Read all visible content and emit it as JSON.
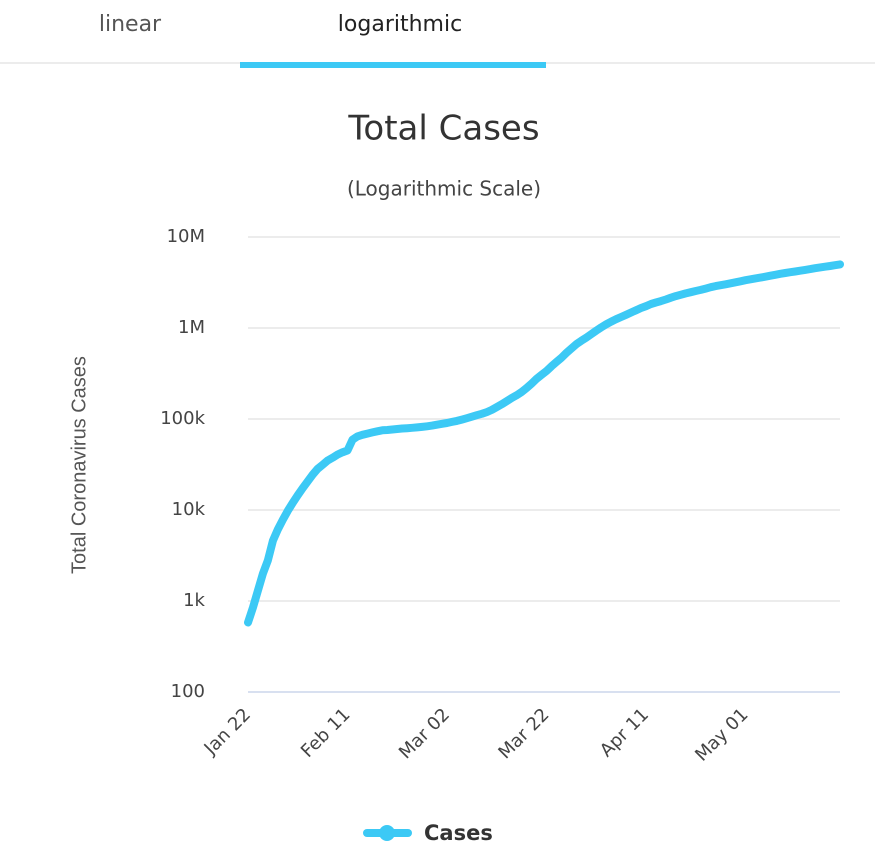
{
  "tabs": [
    "linear",
    "logarithmic"
  ],
  "chart_data": {
    "type": "line",
    "title": "Total Cases",
    "subtitle": "(Logarithmic Scale)",
    "y_label": "Total Coronavirus Cases",
    "log_scale": true,
    "grid": true,
    "legend": "bottom",
    "categories": [
      "Jan 22",
      null,
      null,
      null,
      null,
      null,
      null,
      null,
      null,
      null,
      null,
      null,
      null,
      null,
      null,
      null,
      null,
      null,
      null,
      null,
      "Feb 11",
      null,
      null,
      null,
      null,
      null,
      null,
      null,
      null,
      null,
      null,
      null,
      null,
      null,
      null,
      null,
      null,
      null,
      null,
      null,
      "Mar 02",
      null,
      null,
      null,
      null,
      null,
      null,
      null,
      null,
      null,
      null,
      null,
      null,
      null,
      null,
      null,
      null,
      null,
      null,
      null,
      "Mar 22",
      null,
      null,
      null,
      null,
      null,
      null,
      null,
      null,
      null,
      null,
      null,
      null,
      null,
      null,
      null,
      null,
      null,
      null,
      null,
      "Apr 11",
      null,
      null,
      null,
      null,
      null,
      null,
      null,
      null,
      null,
      null,
      null,
      null,
      null,
      null,
      null,
      null,
      null,
      null,
      null,
      "May 01",
      null,
      null,
      null,
      null,
      null,
      null,
      null,
      null,
      null,
      null,
      null,
      null,
      null,
      null,
      null,
      null,
      null,
      null,
      null
    ],
    "series": [
      {
        "name": "Cases",
        "color": "#3cc9f5",
        "values": [
          580,
          850,
          1300,
          2000,
          2800,
          4600,
          6100,
          7800,
          9800,
          12000,
          14500,
          17400,
          20600,
          24500,
          28300,
          31400,
          34900,
          37600,
          40600,
          43100,
          45100,
          59300,
          64400,
          67100,
          69200,
          71300,
          73300,
          75200,
          75700,
          76700,
          77700,
          78700,
          79200,
          80100,
          80800,
          81800,
          83100,
          84600,
          86600,
          88600,
          90400,
          93000,
          95300,
          98400,
          102000,
          106000,
          110000,
          114000,
          119000,
          126000,
          135000,
          145000,
          157000,
          170000,
          182000,
          198000,
          219000,
          245000,
          276000,
          305000,
          337000,
          379000,
          423000,
          471000,
          532000,
          596000,
          663000,
          723000,
          785000,
          858000,
          935000,
          1016000,
          1098000,
          1175000,
          1250000,
          1321000,
          1396000,
          1480000,
          1565000,
          1658000,
          1736000,
          1835000,
          1905000,
          1976000,
          2056000,
          2152000,
          2240000,
          2318000,
          2401000,
          2472000,
          2549000,
          2624000,
          2709000,
          2805000,
          2884000,
          2955000,
          3024000,
          3101000,
          3177000,
          3260000,
          3349000,
          3429000,
          3507000,
          3583000,
          3663000,
          3755000,
          3846000,
          3938000,
          4024000,
          4102000,
          4178000,
          4262000,
          4348000,
          4442000,
          4542000,
          4634000,
          4714000,
          4802000,
          4897000,
          4996000
        ]
      }
    ],
    "ylim": [
      100,
      10000000
    ],
    "yticks": [
      100,
      {
        "value": 1000,
        "label": "1k"
      },
      {
        "value": 10000,
        "label": "10k"
      },
      {
        "value": 100000,
        "label": "100k"
      },
      {
        "value": 1000000,
        "label": "1M"
      },
      {
        "value": 10000000,
        "label": "10M"
      }
    ]
  }
}
